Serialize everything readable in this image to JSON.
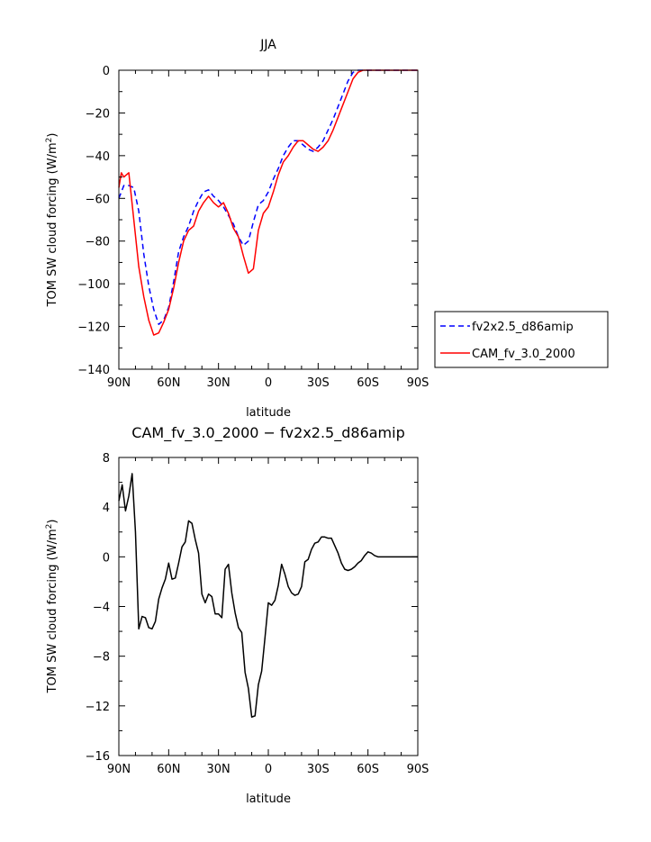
{
  "chart_data": [
    {
      "type": "line",
      "title": "JJA",
      "xlabel": "latitude",
      "ylabel": "TOM SW cloud forcing (W/m²)",
      "ylabel_main": "TOM SW cloud forcing (W/m",
      "ylabel_sup": "2",
      "ylabel_close": ")",
      "xlim": [
        -90,
        90
      ],
      "ylim": [
        -140,
        0
      ],
      "xticks": [
        -90,
        -60,
        -30,
        0,
        30,
        60,
        90
      ],
      "xtick_labels": [
        "90N",
        "60N",
        "30N",
        "0",
        "30S",
        "60S",
        "90S"
      ],
      "yticks": [
        0,
        -20,
        -40,
        -60,
        -80,
        -100,
        -120,
        -140
      ],
      "ytick_labels": [
        "0",
        "−20",
        "−40",
        "−60",
        "−80",
        "−100",
        "−120",
        "−140"
      ],
      "legend_position": "right",
      "series": [
        {
          "name": "fv2x2.5_d86amip",
          "color": "#0000ff",
          "dash": "dashed",
          "x": [
            -90,
            -87,
            -84,
            -81,
            -78,
            -75,
            -72,
            -69,
            -66,
            -63,
            -60,
            -57,
            -54,
            -51,
            -48,
            -45,
            -42,
            -39,
            -36,
            -33,
            -30,
            -27,
            -24,
            -21,
            -18,
            -15,
            -12,
            -9,
            -6,
            -3,
            0,
            3,
            6,
            9,
            12,
            15,
            18,
            21,
            24,
            27,
            30,
            33,
            36,
            39,
            42,
            45,
            48,
            51,
            54,
            57,
            60,
            63,
            66,
            69,
            72,
            75,
            78,
            81,
            84,
            87,
            90
          ],
          "y": [
            -60,
            -54,
            -54,
            -55,
            -66,
            -86,
            -101,
            -112,
            -119,
            -117,
            -111,
            -99,
            -85,
            -78,
            -73,
            -66,
            -61,
            -57,
            -56,
            -59,
            -61,
            -64,
            -68,
            -72,
            -78,
            -82,
            -80,
            -71,
            -63,
            -61,
            -57,
            -51,
            -46,
            -40,
            -36,
            -33,
            -33,
            -35,
            -37,
            -38,
            -36,
            -33,
            -28,
            -23,
            -17,
            -11,
            -5,
            -1,
            0,
            0,
            0,
            0,
            0,
            0,
            0,
            0,
            0,
            0,
            0,
            0,
            0
          ]
        },
        {
          "name": "CAM_fv_3.0_2000",
          "color": "#ff0000",
          "dash": "solid",
          "x": [
            -90,
            -88.5,
            -87,
            -85.5,
            -84,
            -81,
            -78,
            -75,
            -72,
            -69,
            -66,
            -63,
            -60,
            -57,
            -54,
            -51,
            -48,
            -45,
            -42,
            -39,
            -36,
            -33,
            -30,
            -27,
            -24,
            -21,
            -18,
            -15,
            -12,
            -9,
            -6,
            -3,
            0,
            3,
            6,
            9,
            12,
            15,
            18,
            21,
            24,
            27,
            30,
            33,
            36,
            39,
            42,
            45,
            48,
            51,
            54,
            57,
            60,
            63,
            66,
            69,
            72,
            75,
            78,
            81,
            84,
            87,
            90
          ],
          "y": [
            -55,
            -48,
            -50,
            -49,
            -48,
            -70,
            -92,
            -106,
            -117,
            -124,
            -123,
            -118,
            -112,
            -102,
            -90,
            -80,
            -75,
            -73,
            -66,
            -62,
            -59,
            -62,
            -64,
            -62,
            -67,
            -74,
            -78,
            -87,
            -95,
            -93,
            -75,
            -67,
            -64,
            -57,
            -49,
            -43,
            -40,
            -36,
            -33,
            -33,
            -35,
            -37,
            -38,
            -36,
            -33,
            -28,
            -22,
            -16,
            -10,
            -4,
            -1,
            0,
            0,
            0,
            0,
            0,
            0,
            0,
            0,
            0,
            0,
            0,
            0
          ]
        }
      ]
    },
    {
      "type": "line",
      "title": "CAM_fv_3.0_2000 − fv2x2.5_d86amip",
      "xlabel": "latitude",
      "ylabel": "TOM SW cloud forcing (W/m²)",
      "ylabel_main": "TOM SW cloud forcing (W/m",
      "ylabel_sup": "2",
      "ylabel_close": ")",
      "xlim": [
        -90,
        90
      ],
      "ylim": [
        -16,
        8
      ],
      "xticks": [
        -90,
        -60,
        -30,
        0,
        30,
        60,
        90
      ],
      "xtick_labels": [
        "90N",
        "60N",
        "30N",
        "0",
        "30S",
        "60S",
        "90S"
      ],
      "yticks": [
        8,
        4,
        0,
        -4,
        -8,
        -12,
        -16
      ],
      "ytick_labels": [
        "8",
        "4",
        "0",
        "−4",
        "−8",
        "−12",
        "−16"
      ],
      "series": [
        {
          "color": "#000000",
          "dash": "solid",
          "x": [
            -90,
            -88,
            -86,
            -84,
            -82,
            -80,
            -78,
            -76,
            -74,
            -72,
            -70,
            -68,
            -66,
            -64,
            -62,
            -60,
            -58,
            -56,
            -54,
            -52,
            -50,
            -48,
            -46,
            -44,
            -42,
            -40,
            -38,
            -36,
            -34,
            -32,
            -30,
            -28,
            -26,
            -24,
            -22,
            -20,
            -18,
            -16,
            -14,
            -12,
            -10,
            -8,
            -6,
            -4,
            -2,
            0,
            2,
            4,
            6,
            8,
            10,
            12,
            14,
            16,
            18,
            20,
            22,
            24,
            26,
            28,
            30,
            32,
            34,
            36,
            38,
            40,
            42,
            44,
            46,
            48,
            50,
            52,
            54,
            56,
            58,
            60,
            62,
            64,
            66,
            68,
            70,
            72,
            74,
            76,
            78,
            80,
            82,
            84,
            86,
            88,
            90
          ],
          "y": [
            4.5,
            5.8,
            3.7,
            4.9,
            6.7,
            2.0,
            -5.8,
            -4.8,
            -4.9,
            -5.7,
            -5.8,
            -5.2,
            -3.4,
            -2.5,
            -1.8,
            -0.5,
            -1.8,
            -1.7,
            -0.5,
            0.8,
            1.2,
            2.9,
            2.7,
            1.4,
            0.3,
            -3.0,
            -3.7,
            -3.0,
            -3.2,
            -4.6,
            -4.6,
            -4.9,
            -1.0,
            -0.6,
            -2.9,
            -4.5,
            -5.7,
            -6.1,
            -9.3,
            -10.6,
            -12.9,
            -12.8,
            -10.3,
            -9.2,
            -6.5,
            -3.7,
            -3.9,
            -3.5,
            -2.3,
            -0.6,
            -1.4,
            -2.4,
            -2.9,
            -3.1,
            -3.0,
            -2.4,
            -0.4,
            -0.2,
            0.6,
            1.1,
            1.2,
            1.6,
            1.6,
            1.5,
            1.5,
            0.9,
            0.3,
            -0.5,
            -1.0,
            -1.1,
            -1.0,
            -0.8,
            -0.5,
            -0.3,
            0.1,
            0.4,
            0.3,
            0.1,
            0.0,
            0.0,
            0.0,
            0.0,
            0.0,
            0.0,
            0.0,
            0.0,
            0.0,
            0.0,
            0.0,
            0.0,
            0.0
          ]
        }
      ]
    }
  ]
}
